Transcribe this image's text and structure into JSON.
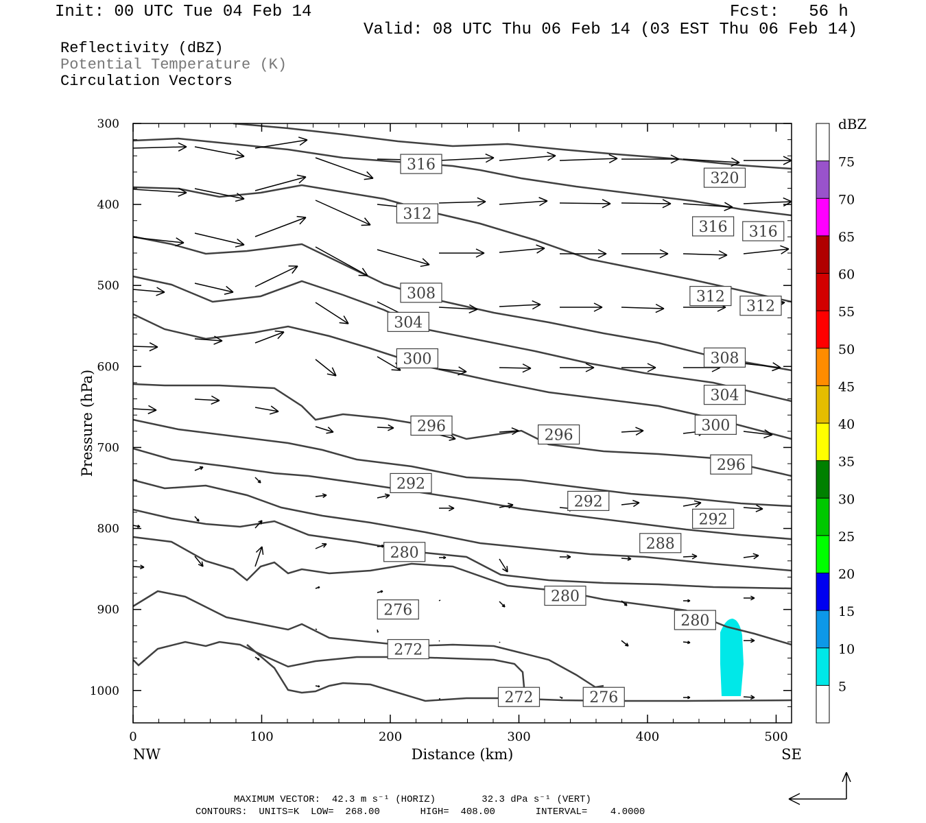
{
  "header": {
    "init": "Init: 00 UTC Tue 04 Feb 14",
    "fcst": "Fcst:   56 h",
    "valid": "Valid: 08 UTC Thu 06 Feb 14 (03 EST Thu 06 Feb 14)"
  },
  "fields": [
    "Reflectivity (dBZ)",
    "Potential Temperature (K)",
    "Circulation Vectors"
  ],
  "chart_data": {
    "type": "cross-section",
    "xlabel": "Distance (km)",
    "ylabel": "Pressure (hPa)",
    "xlim": [
      0,
      512
    ],
    "ylim": [
      1040,
      300
    ],
    "x_ticks": [
      0,
      100,
      200,
      300,
      400,
      500
    ],
    "y_ticks": [
      300,
      400,
      500,
      600,
      700,
      800,
      900,
      1000
    ],
    "x_end_labels": {
      "left": "NW",
      "right": "SE"
    },
    "contour_labels": [
      {
        "v": "316",
        "x": 224,
        "p": 350
      },
      {
        "v": "320",
        "x": 460,
        "p": 367
      },
      {
        "v": "312",
        "x": 221,
        "p": 411
      },
      {
        "v": "316",
        "x": 451,
        "p": 427
      },
      {
        "v": "316",
        "x": 490,
        "p": 433
      },
      {
        "v": "308",
        "x": 224,
        "p": 509
      },
      {
        "v": "312",
        "x": 449,
        "p": 513
      },
      {
        "v": "312",
        "x": 488,
        "p": 525
      },
      {
        "v": "304",
        "x": 214,
        "p": 545
      },
      {
        "v": "300",
        "x": 221,
        "p": 590
      },
      {
        "v": "308",
        "x": 460,
        "p": 589
      },
      {
        "v": "304",
        "x": 460,
        "p": 635
      },
      {
        "v": "300",
        "x": 453,
        "p": 672
      },
      {
        "v": "296",
        "x": 232,
        "p": 673
      },
      {
        "v": "296",
        "x": 331,
        "p": 684
      },
      {
        "v": "296",
        "x": 465,
        "p": 721
      },
      {
        "v": "292",
        "x": 216,
        "p": 744
      },
      {
        "v": "292",
        "x": 354,
        "p": 766
      },
      {
        "v": "292",
        "x": 451,
        "p": 788
      },
      {
        "v": "288",
        "x": 410,
        "p": 818
      },
      {
        "v": "280",
        "x": 211,
        "p": 829
      },
      {
        "v": "280",
        "x": 336,
        "p": 883
      },
      {
        "v": "280",
        "x": 437,
        "p": 913
      },
      {
        "v": "276",
        "x": 206,
        "p": 900
      },
      {
        "v": "272",
        "x": 214,
        "p": 949
      },
      {
        "v": "272",
        "x": 300,
        "p": 1008
      },
      {
        "v": "276",
        "x": 366,
        "p": 1008
      }
    ],
    "reflectivity_area": {
      "dbz_range": "5-10",
      "x": [
        455,
        475
      ],
      "p": [
        905,
        1008
      ]
    },
    "colorbar": {
      "title": "dBZ",
      "levels": [
        "5",
        "10",
        "15",
        "20",
        "25",
        "30",
        "35",
        "40",
        "45",
        "50",
        "55",
        "60",
        "65",
        "70",
        "75"
      ],
      "colors": [
        "#ffffff",
        "#00e8e8",
        "#0d98e8",
        "#0000f0",
        "#00ff00",
        "#00c800",
        "#008000",
        "#ffff00",
        "#e5bd00",
        "#ff8c00",
        "#ff0000",
        "#d20000",
        "#b00000",
        "#ff00ff",
        "#9953cb",
        "#ffffff"
      ]
    },
    "colors": {
      "contour": "#404040",
      "refl": "#00e8e8"
    }
  },
  "footer": {
    "max_vector_line": "MAXIMUM VECTOR:  42.3 m s⁻¹ (HORIZ)        32.3 dPa s⁻¹ (VERT)",
    "contours_line": "CONTOURS:  UNITS=K  LOW=  268.00       HIGH=  408.00       INTERVAL=    4.0000"
  }
}
